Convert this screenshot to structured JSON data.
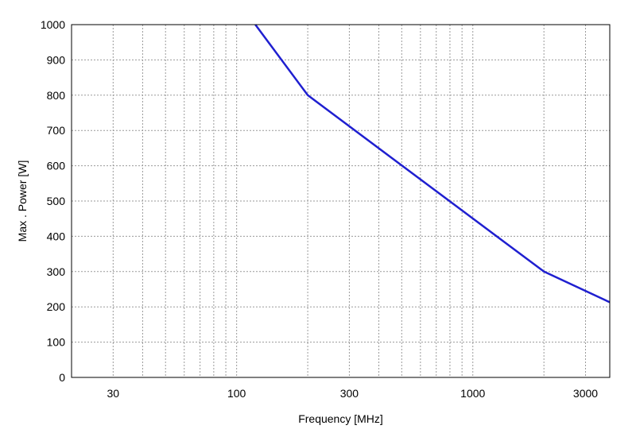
{
  "chart_data": {
    "type": "line",
    "title": "",
    "xlabel": "Frequency [MHz]",
    "ylabel": "Max . Power [W]",
    "xscale": "log",
    "xlim": [
      20,
      3800
    ],
    "ylim": [
      0,
      1000
    ],
    "x_ticks": [
      30,
      100,
      300,
      1000,
      3000
    ],
    "x_tick_labels": [
      "30",
      "100",
      "300",
      "1000",
      "3000"
    ],
    "y_ticks": [
      0,
      100,
      200,
      300,
      400,
      500,
      600,
      700,
      800,
      900,
      1000
    ],
    "y_tick_labels": [
      "0",
      "100",
      "200",
      "300",
      "400",
      "500",
      "600",
      "700",
      "800",
      "900",
      "1000"
    ],
    "grid": true,
    "grid_style": "dotted",
    "legend": "none",
    "series": [
      {
        "color": "#1f1fd0",
        "x": [
          120,
          200,
          2000,
          3800
        ],
        "y": [
          1000,
          800,
          300,
          213
        ]
      }
    ]
  }
}
